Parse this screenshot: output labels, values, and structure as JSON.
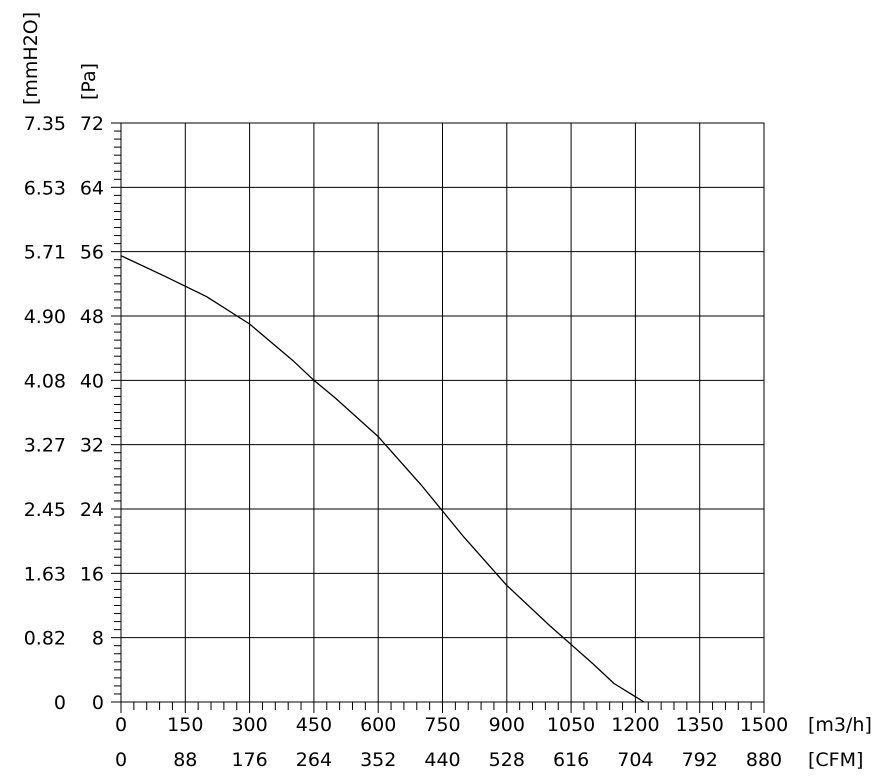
{
  "chart_data": {
    "type": "line",
    "title": "",
    "grid": true,
    "x_axis": {
      "unit_label": "[m3/h]",
      "range": [
        0,
        1500
      ],
      "ticks": [
        0,
        150,
        300,
        450,
        600,
        750,
        900,
        1050,
        1200,
        1350,
        1500
      ],
      "tick_labels": [
        "0",
        "150",
        "300",
        "450",
        "600",
        "750",
        "900",
        "1050",
        "1200",
        "1350",
        "1500"
      ]
    },
    "x2_axis": {
      "unit_label": "[CFM]",
      "tick_labels": [
        "0",
        "88",
        "176",
        "264",
        "352",
        "440",
        "528",
        "616",
        "704",
        "792",
        "880"
      ]
    },
    "y_axis": {
      "unit_label": "[Pa]",
      "range": [
        0,
        72
      ],
      "ticks": [
        0,
        8,
        16,
        24,
        32,
        40,
        48,
        56,
        64,
        72
      ],
      "tick_labels": [
        "0",
        "8",
        "16",
        "24",
        "32",
        "40",
        "48",
        "56",
        "64",
        "72"
      ]
    },
    "y2_axis": {
      "unit_label": "[mmH2O]",
      "tick_labels": [
        "0",
        "0.82",
        "1.63",
        "2.45",
        "3.27",
        "4.08",
        "4.90",
        "5.71",
        "6.53",
        "7.35"
      ]
    },
    "series": [
      {
        "color": "#000000",
        "x": [
          0,
          100,
          200,
          300,
          400,
          450,
          500,
          600,
          700,
          800,
          900,
          1000,
          1100,
          1150,
          1220
        ],
        "y": [
          55.5,
          53,
          50.4,
          47,
          42.5,
          40,
          37.8,
          33,
          27,
          20.5,
          14.5,
          9.5,
          4.8,
          2.3,
          0
        ]
      }
    ]
  }
}
